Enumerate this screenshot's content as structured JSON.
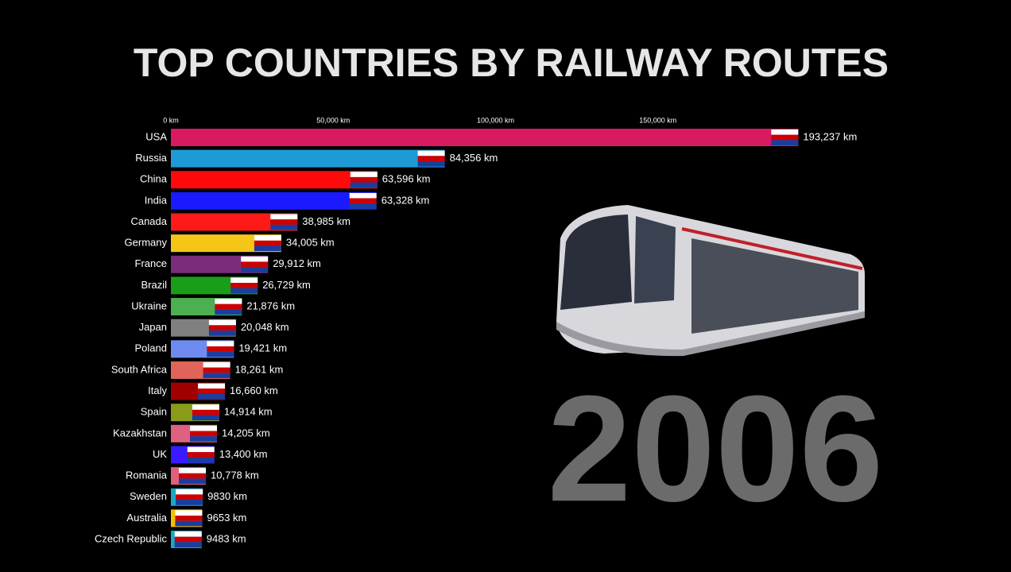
{
  "chart_data": {
    "type": "bar",
    "orientation": "horizontal",
    "title": "TOP COUNTRIES BY RAILWAY ROUTES",
    "annotation": "2006",
    "categories": [
      "USA",
      "Russia",
      "China",
      "India",
      "Canada",
      "Germany",
      "France",
      "Brazil",
      "Ukraine",
      "Japan",
      "Poland",
      "South Africa",
      "Italy",
      "Spain",
      "Kazakhstan",
      "UK",
      "Romania",
      "Sweden",
      "Australia",
      "Czech Republic"
    ],
    "values": [
      193237,
      84356,
      63596,
      63328,
      38985,
      34005,
      29912,
      26729,
      21876,
      20048,
      19421,
      18261,
      16660,
      14914,
      14205,
      13400,
      10778,
      9830,
      9653,
      9483
    ],
    "value_labels": [
      "193,237 km",
      "84,356 km",
      "63,596 km",
      "63,328 km",
      "38,985 km",
      "34,005 km",
      "29,912 km",
      "26,729 km",
      "21,876 km",
      "20,048 km",
      "19,421 km",
      "18,261 km",
      "16,660 km",
      "14,914 km",
      "14,205 km",
      "13,400 km",
      "10,778 km",
      "9830 km",
      "9653 km",
      "9483 km"
    ],
    "colors": [
      "#d81b60",
      "#1e9bd7",
      "#ff0a0a",
      "#1a1aff",
      "#ff1a1a",
      "#f5c518",
      "#7b2d7b",
      "#1a9e1a",
      "#4caf50",
      "#808080",
      "#6e8cf0",
      "#e0645a",
      "#a00000",
      "#8a9a1a",
      "#e06080",
      "#3a1aff",
      "#e0607a",
      "#1aa8c8",
      "#f5c000",
      "#1aa8c8"
    ],
    "xlim": [
      0,
      200000
    ],
    "xticks": [
      {
        "value": 0,
        "label": "0 km"
      },
      {
        "value": 50000,
        "label": "50,000 km"
      },
      {
        "value": 100000,
        "label": "100,000 km"
      },
      {
        "value": 150000,
        "label": "150,000 km"
      }
    ]
  }
}
